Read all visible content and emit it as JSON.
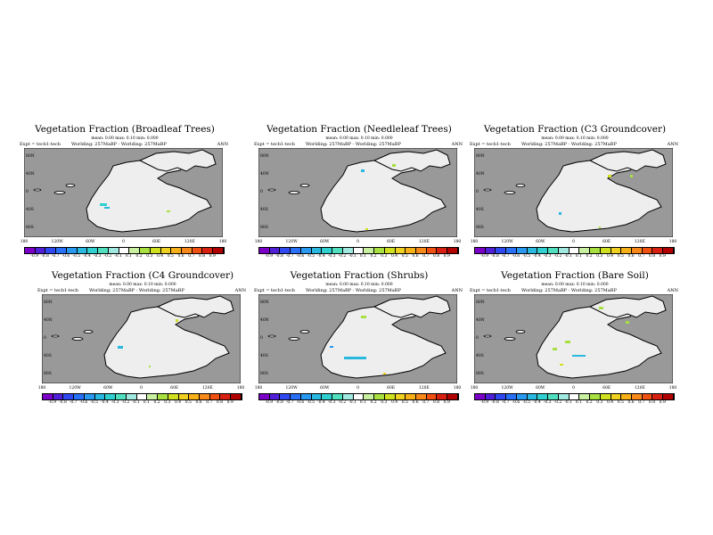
{
  "panels": [
    {
      "title": "Vegetation Fraction (Broadleaf Trees)",
      "sub": "mean: 0.00 max: 0.10 min: 0.000",
      "expt": "Expt = tecb1-tecb",
      "desc": "Worlding: 257MaBP - Worlding: 257MaBP",
      "ann": "ANN"
    },
    {
      "title": "Vegetation Fraction (Needleleaf Trees)",
      "sub": "mean: 0.00 max: 0.10 min: 0.000",
      "expt": "Expt = tecb1-tecb",
      "desc": "Worlding: 257MaBP - Worlding: 257MaBP",
      "ann": "ANN"
    },
    {
      "title": "Vegetation Fraction (C3 Groundcover)",
      "sub": "mean: 0.00 max: 0.10 min: 0.000",
      "expt": "Expt = tecb1-tecb",
      "desc": "Worlding: 257MaBP - Worlding: 257MaBP",
      "ann": "ANN"
    },
    {
      "title": "Vegetation Fraction (C4 Groundcover)",
      "sub": "mean: 0.00 max: 0.10 min: 0.000",
      "expt": "Expt = tecb1-tecb",
      "desc": "Worlding: 257MaBP - Worlding: 257MaBP",
      "ann": "ANN"
    },
    {
      "title": "Vegetation Fraction (Shrubs)",
      "sub": "mean: 0.00 max: 0.10 min: 0.000",
      "expt": "Expt = tecb1-tecb",
      "desc": "Worlding: 257MaBP - Worlding: 257MaBP",
      "ann": "ANN"
    },
    {
      "title": "Vegetation Fraction (Bare Soil)",
      "sub": "mean: 0.00 max: 0.10 min: 0.000",
      "expt": "Expt = tecb1-tecb",
      "desc": "Worlding: 257MaBP - Worlding: 257MaBP",
      "ann": "ANN"
    }
  ],
  "lon_labels": [
    "180",
    "120W",
    "60W",
    "0",
    "60E",
    "120E",
    "180"
  ],
  "lat_labels": [
    "80N",
    "40N",
    "0",
    "40S",
    "80S"
  ],
  "colorbar_labels": [
    "-0.9",
    "-0.8",
    "-0.7",
    "-0.6",
    "-0.5",
    "-0.4",
    "-0.3",
    "-0.2",
    "-0.1",
    "0.1",
    "0.2",
    "0.3",
    "0.4",
    "0.5",
    "0.6",
    "0.7",
    "0.8",
    "0.9"
  ],
  "colorbar_colors": [
    "#7a00c8",
    "#5020d8",
    "#3048f0",
    "#2870f8",
    "#2898f0",
    "#28b8e0",
    "#30d0d0",
    "#50e0c0",
    "#a0e8e0",
    "#ffffff",
    "#c8f0a0",
    "#a8e040",
    "#d0e020",
    "#f0d020",
    "#f8b018",
    "#f88818",
    "#f05010",
    "#d82010",
    "#b00000"
  ],
  "colors": {
    "ocean": "#999999",
    "land": "#eeeeee",
    "coast": "#000000"
  }
}
